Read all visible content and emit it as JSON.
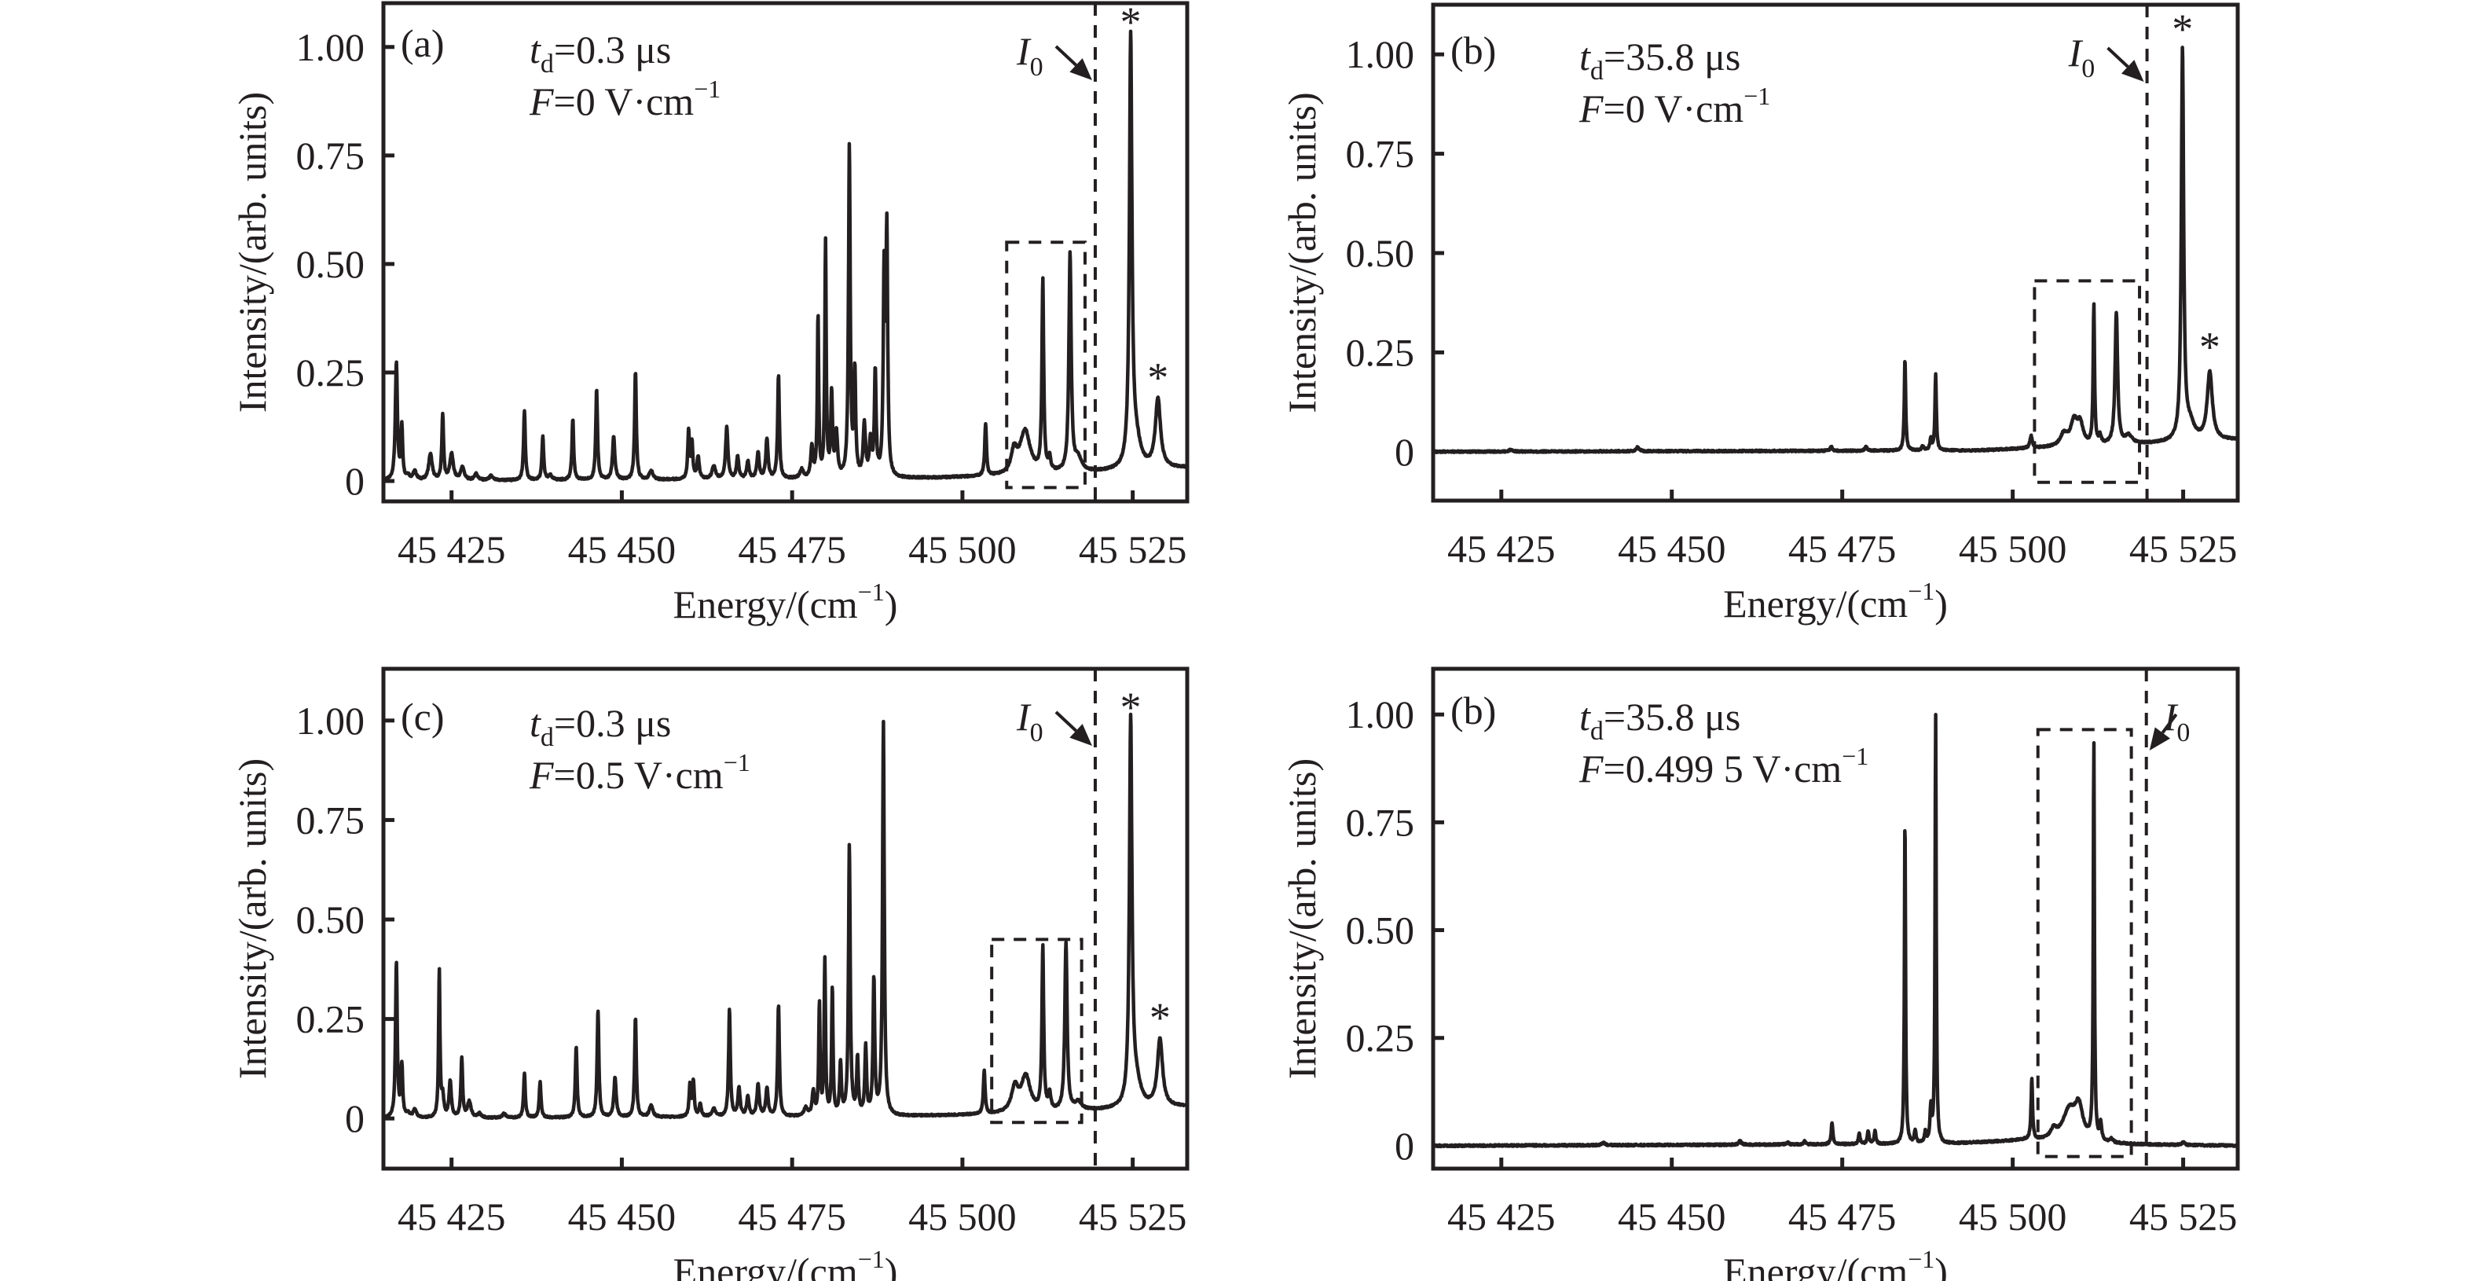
{
  "figure": {
    "panels_count": 4
  },
  "chart_data": [
    {
      "type": "line",
      "panel_label": "(a)",
      "annotation_td": {
        "var": "t",
        "sub": "d",
        "value": "=0.3 μs"
      },
      "annotation_F": {
        "var": "F",
        "value": "=0 V·cm",
        "sup": "−1"
      },
      "xlabel": "Energy/(cm",
      "xlabel_sup": "−1",
      "xlabel_end": ")",
      "ylabel": "Intensity/(arb. units)",
      "xlim": [
        45415,
        45533
      ],
      "ylim": [
        -0.047,
        1.101
      ],
      "xticks": [
        45425,
        45450,
        45475,
        45500,
        45525
      ],
      "xtick_labels": [
        "45 425",
        "45 450",
        "45 475",
        "45 500",
        "45 525"
      ],
      "yticks": [
        0,
        0.25,
        0.5,
        0.75,
        1.0
      ],
      "ytick_labels": [
        "0",
        "0.25",
        "0.50",
        "0.75",
        "1.00"
      ],
      "I0_label": "I",
      "I0_sub": "0",
      "I0_position": 45519.5,
      "dashed_box": {
        "x0": 45506.5,
        "x1": 45518.0,
        "y0": -0.015,
        "y1": 0.55
      },
      "star_markers": [
        {
          "x": 45524.7,
          "y": 1.0
        },
        {
          "x": 45528.7,
          "y": 0.18
        }
      ],
      "baseline": 0.0,
      "peaks": [
        [
          45416.9,
          0.27,
          0.18
        ],
        [
          45417.7,
          0.12,
          0.15
        ],
        [
          45418.6,
          0.01,
          0.3
        ],
        [
          45419.6,
          0.02,
          0.3
        ],
        [
          45421.9,
          0.06,
          0.3
        ],
        [
          45423.7,
          0.15,
          0.15
        ],
        [
          45425.0,
          0.06,
          0.3
        ],
        [
          45426.6,
          0.03,
          0.3
        ],
        [
          45428.6,
          0.015,
          0.3
        ],
        [
          45430.8,
          0.01,
          0.3
        ],
        [
          45435.7,
          0.16,
          0.15
        ],
        [
          45438.4,
          0.1,
          0.15
        ],
        [
          45439.5,
          0.01,
          0.3
        ],
        [
          45442.8,
          0.14,
          0.15
        ],
        [
          45446.3,
          0.21,
          0.15
        ],
        [
          45448.8,
          0.1,
          0.2
        ],
        [
          45452.0,
          0.25,
          0.15
        ],
        [
          45454.3,
          0.02,
          0.3
        ],
        [
          45459.8,
          0.11,
          0.15
        ],
        [
          45460.3,
          0.08,
          0.15
        ],
        [
          45461.2,
          0.05,
          0.2
        ],
        [
          45463.5,
          0.03,
          0.3
        ],
        [
          45465.4,
          0.12,
          0.2
        ],
        [
          45467.0,
          0.05,
          0.2
        ],
        [
          45468.5,
          0.04,
          0.2
        ],
        [
          45470.0,
          0.06,
          0.2
        ],
        [
          45471.3,
          0.09,
          0.2
        ],
        [
          45473.0,
          0.24,
          0.15
        ],
        [
          45476.4,
          0.02,
          0.3
        ],
        [
          45477.9,
          0.07,
          0.2
        ],
        [
          45478.8,
          0.37,
          0.12
        ],
        [
          45479.9,
          0.54,
          0.12
        ],
        [
          45480.8,
          0.19,
          0.15
        ],
        [
          45481.5,
          0.1,
          0.2
        ],
        [
          45483.4,
          0.76,
          0.15
        ],
        [
          45484.2,
          0.24,
          0.15
        ],
        [
          45485.6,
          0.12,
          0.2
        ],
        [
          45486.5,
          0.08,
          0.2
        ],
        [
          45487.2,
          0.24,
          0.15
        ],
        [
          45488.5,
          0.45,
          0.15
        ],
        [
          45488.9,
          0.55,
          0.15
        ],
        [
          45503.4,
          0.12,
          0.15
        ],
        [
          45507.6,
          0.05,
          0.5
        ],
        [
          45509.2,
          0.1,
          0.9
        ],
        [
          45511.8,
          0.44,
          0.15
        ],
        [
          45512.8,
          0.03,
          0.2
        ],
        [
          45515.8,
          0.5,
          0.2
        ],
        [
          45517.0,
          0.03,
          0.6
        ],
        [
          45524.7,
          0.98,
          0.22
        ],
        [
          45525.5,
          0.06,
          0.8
        ],
        [
          45528.7,
          0.16,
          0.45
        ]
      ],
      "background": [
        [
          45415,
          0.0
        ],
        [
          45490,
          0.005
        ],
        [
          45505,
          0.01
        ],
        [
          45520,
          0.02
        ],
        [
          45533,
          0.03
        ]
      ]
    },
    {
      "type": "line",
      "panel_label": "(b)",
      "annotation_td": {
        "var": "t",
        "sub": "d",
        "value": "=35.8 μs"
      },
      "annotation_F": {
        "var": "F",
        "value": "=0 V·cm",
        "sup": "−1"
      },
      "xlabel": "Energy/(cm",
      "xlabel_sup": "−1",
      "xlabel_end": ")",
      "ylabel": "Intensity/(arb. units)",
      "xlim": [
        45415,
        45533
      ],
      "ylim": [
        -0.123,
        1.125
      ],
      "xticks": [
        45425,
        45450,
        45475,
        45500,
        45525
      ],
      "xtick_labels": [
        "45 425",
        "45 450",
        "45 475",
        "45 500",
        "45 525"
      ],
      "yticks": [
        0,
        0.25,
        0.5,
        0.75,
        1.0
      ],
      "ytick_labels": [
        "0",
        "0.25",
        "0.50",
        "0.75",
        "1.00"
      ],
      "I0_label": "I",
      "I0_sub": "0",
      "I0_position": 45519.7,
      "dashed_box": {
        "x0": 45503.2,
        "x1": 45518.6,
        "y0": -0.077,
        "y1": 0.43
      },
      "star_markers": [
        {
          "x": 45524.9,
          "y": 1.0
        },
        {
          "x": 45528.9,
          "y": 0.2
        }
      ],
      "baseline": 0.0,
      "peaks": [
        [
          45426.4,
          0.005,
          0.3
        ],
        [
          45445.0,
          0.01,
          0.3
        ],
        [
          45473.4,
          0.01,
          0.2
        ],
        [
          45478.5,
          0.01,
          0.2
        ],
        [
          45484.2,
          0.23,
          0.12
        ],
        [
          45486.8,
          0.01,
          0.2
        ],
        [
          45488.0,
          0.03,
          0.15
        ],
        [
          45488.7,
          0.19,
          0.12
        ],
        [
          45502.7,
          0.03,
          0.2
        ],
        [
          45507.5,
          0.03,
          0.6
        ],
        [
          45509.0,
          0.06,
          0.6
        ],
        [
          45509.9,
          0.05,
          0.5
        ],
        [
          45511.9,
          0.35,
          0.12
        ],
        [
          45512.8,
          0.02,
          0.2
        ],
        [
          45515.2,
          0.33,
          0.22
        ],
        [
          45517.0,
          0.02,
          0.6
        ],
        [
          45524.9,
          0.98,
          0.2
        ],
        [
          45526.0,
          0.04,
          0.8
        ],
        [
          45528.9,
          0.17,
          0.45
        ]
      ],
      "background": [
        [
          45415,
          0.0
        ],
        [
          45495,
          0.003
        ],
        [
          45505,
          0.01
        ],
        [
          45520,
          0.02
        ],
        [
          45533,
          0.03
        ]
      ]
    },
    {
      "type": "line",
      "panel_label": "(c)",
      "annotation_td": {
        "var": "t",
        "sub": "d",
        "value": "=0.3 μs"
      },
      "annotation_F": {
        "var": "F",
        "value": "=0.5 V·cm",
        "sup": "−1"
      },
      "xlabel": "Energy/(cm",
      "xlabel_sup": "−1",
      "xlabel_end": ")",
      "ylabel": "Intensity/(arb. units)",
      "xlim": [
        45415,
        45533
      ],
      "ylim": [
        -0.126,
        1.13
      ],
      "xticks": [
        45425,
        45450,
        45475,
        45500,
        45525
      ],
      "xtick_labels": [
        "45 425",
        "45 450",
        "45 475",
        "45 500",
        "45 525"
      ],
      "yticks": [
        0,
        0.25,
        0.5,
        0.75,
        1.0
      ],
      "ytick_labels": [
        "0",
        "0.25",
        "0.50",
        "0.75",
        "1.00"
      ],
      "I0_label": "I",
      "I0_sub": "0",
      "I0_position": 45519.5,
      "dashed_box": {
        "x0": 45504.3,
        "x1": 45517.5,
        "y0": -0.01,
        "y1": 0.45
      },
      "star_markers": [
        {
          "x": 45524.7,
          "y": 0.97
        },
        {
          "x": 45529.0,
          "y": 0.19
        }
      ],
      "baseline": 0.0,
      "peaks": [
        [
          45416.9,
          0.39,
          0.15
        ],
        [
          45417.7,
          0.13,
          0.15
        ],
        [
          45418.6,
          0.01,
          0.3
        ],
        [
          45419.6,
          0.02,
          0.3
        ],
        [
          45423.2,
          0.37,
          0.12
        ],
        [
          45423.7,
          0.05,
          0.2
        ],
        [
          45424.8,
          0.09,
          0.2
        ],
        [
          45426.5,
          0.15,
          0.15
        ],
        [
          45427.6,
          0.04,
          0.3
        ],
        [
          45429.1,
          0.01,
          0.3
        ],
        [
          45432.7,
          0.01,
          0.3
        ],
        [
          45435.7,
          0.11,
          0.15
        ],
        [
          45438.0,
          0.09,
          0.15
        ],
        [
          45443.3,
          0.18,
          0.15
        ],
        [
          45446.5,
          0.27,
          0.15
        ],
        [
          45449.0,
          0.1,
          0.2
        ],
        [
          45452.0,
          0.25,
          0.15
        ],
        [
          45454.3,
          0.03,
          0.3
        ],
        [
          45460.0,
          0.08,
          0.15
        ],
        [
          45460.5,
          0.09,
          0.15
        ],
        [
          45461.5,
          0.03,
          0.2
        ],
        [
          45463.5,
          0.02,
          0.3
        ],
        [
          45465.8,
          0.27,
          0.15
        ],
        [
          45467.2,
          0.07,
          0.2
        ],
        [
          45468.5,
          0.05,
          0.2
        ],
        [
          45470.0,
          0.08,
          0.2
        ],
        [
          45471.3,
          0.07,
          0.2
        ],
        [
          45473.0,
          0.28,
          0.15
        ],
        [
          45477.0,
          0.02,
          0.3
        ],
        [
          45478.1,
          0.06,
          0.2
        ],
        [
          45479.0,
          0.28,
          0.12
        ],
        [
          45479.8,
          0.39,
          0.12
        ],
        [
          45480.9,
          0.32,
          0.12
        ],
        [
          45482.1,
          0.13,
          0.15
        ],
        [
          45483.4,
          0.68,
          0.15
        ],
        [
          45484.6,
          0.14,
          0.15
        ],
        [
          45485.8,
          0.17,
          0.15
        ],
        [
          45487.0,
          0.34,
          0.15
        ],
        [
          45488.4,
          0.99,
          0.15
        ],
        [
          45503.2,
          0.11,
          0.15
        ],
        [
          45507.7,
          0.06,
          0.6
        ],
        [
          45509.3,
          0.09,
          0.8
        ],
        [
          45511.8,
          0.41,
          0.15
        ],
        [
          45512.8,
          0.04,
          0.2
        ],
        [
          45515.2,
          0.42,
          0.2
        ],
        [
          45517.0,
          0.02,
          0.6
        ],
        [
          45524.7,
          0.96,
          0.22
        ],
        [
          45525.5,
          0.06,
          0.8
        ],
        [
          45529.0,
          0.17,
          0.45
        ]
      ],
      "background": [
        [
          45415,
          0.0
        ],
        [
          45490,
          0.005
        ],
        [
          45505,
          0.01
        ],
        [
          45520,
          0.02
        ],
        [
          45533,
          0.03
        ]
      ]
    },
    {
      "type": "line",
      "panel_label": "(b)",
      "annotation_td": {
        "var": "t",
        "sub": "d",
        "value": "=35.8 μs"
      },
      "annotation_F": {
        "var": "F",
        "value": "=0.499 5 V·cm",
        "sup": "−1"
      },
      "xlabel": "Energy/(cm",
      "xlabel_sup": "−1",
      "xlabel_end": ")",
      "ylabel": "Intensity/(arb. units)",
      "xlim": [
        45415,
        45533
      ],
      "ylim": [
        -0.053,
        1.106
      ],
      "xticks": [
        45425,
        45450,
        45475,
        45500,
        45525
      ],
      "xtick_labels": [
        "45 425",
        "45 450",
        "45 475",
        "45 500",
        "45 525"
      ],
      "yticks": [
        0,
        0.25,
        0.5,
        0.75,
        1.0
      ],
      "ytick_labels": [
        "0",
        "0.25",
        "0.50",
        "0.75",
        "1.00"
      ],
      "I0_label": "I",
      "I0_sub": "0",
      "I0_position": 45519.6,
      "dashed_box": {
        "x0": 45503.7,
        "x1": 45517.4,
        "y0": -0.025,
        "y1": 0.965
      },
      "star_markers": [],
      "baseline": 0.0,
      "peaks": [
        [
          45440.0,
          0.005,
          0.3
        ],
        [
          45460.0,
          0.01,
          0.2
        ],
        [
          45467.0,
          0.005,
          0.2
        ],
        [
          45469.5,
          0.007,
          0.2
        ],
        [
          45473.5,
          0.05,
          0.15
        ],
        [
          45477.5,
          0.025,
          0.15
        ],
        [
          45478.8,
          0.03,
          0.15
        ],
        [
          45479.8,
          0.03,
          0.15
        ],
        [
          45484.2,
          0.76,
          0.1
        ],
        [
          45485.7,
          0.03,
          0.15
        ],
        [
          45487.2,
          0.025,
          0.15
        ],
        [
          45488.0,
          0.08,
          0.15
        ],
        [
          45488.7,
          0.99,
          0.1
        ],
        [
          45502.8,
          0.14,
          0.13
        ],
        [
          45506.0,
          0.02,
          0.5
        ],
        [
          45508.3,
          0.07,
          1.2
        ],
        [
          45509.7,
          0.07,
          0.7
        ],
        [
          45511.9,
          0.92,
          0.1
        ],
        [
          45512.9,
          0.04,
          0.15
        ],
        [
          45514.5,
          0.008,
          0.3
        ],
        [
          45525.0,
          0.008,
          0.2
        ]
      ],
      "background": [
        [
          45415,
          0.0
        ],
        [
          45490,
          0.004
        ],
        [
          45502,
          0.012
        ],
        [
          45515,
          0.003
        ],
        [
          45533,
          0.0
        ]
      ]
    }
  ]
}
